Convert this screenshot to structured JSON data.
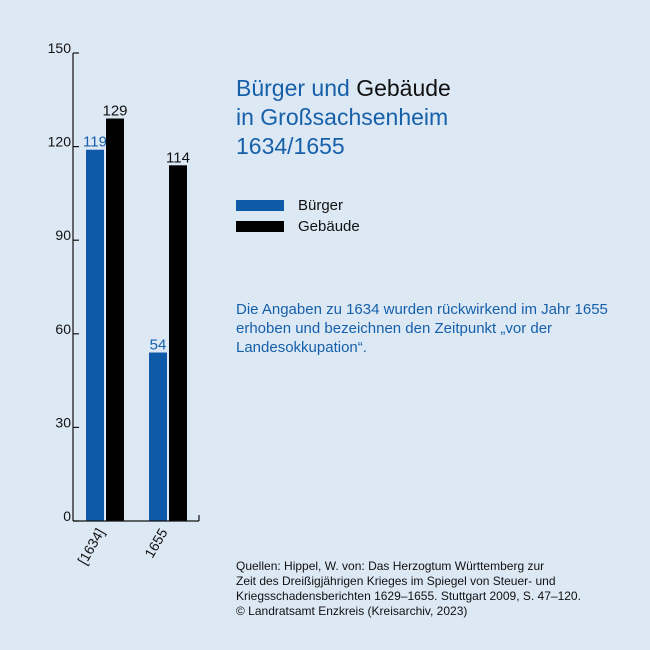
{
  "title": {
    "part1": "Bürger und ",
    "part2": "Gebäude",
    "line2": "in Großsachsenheim",
    "line3": "1634/1655"
  },
  "legend": [
    {
      "label": "Bürger",
      "color": "#0f5aa8"
    },
    {
      "label": "Gebäude",
      "color": "#000000"
    }
  ],
  "note": "Die Angaben zu 1634 wurden rückwirkend im Jahr 1655 erhoben und bezeichnen den Zeitpunkt „vor der Landesokkupation“.",
  "source": {
    "line1": "Quellen: Hippel, W. von: Das Herzogtum Württemberg zur",
    "line2": "Zeit des Dreißigjährigen Krieges im Spiegel von Steuer- und",
    "line3": "Kriegsschadensberichten 1629–1655. Stuttgart 2009, S. 47–120.",
    "line4": "© Landratsamt Enzkreis (Kreisarchiv, 2023)"
  },
  "chart_data": {
    "type": "bar",
    "categories": [
      "[1634]",
      "1655"
    ],
    "series": [
      {
        "name": "Bürger",
        "values": [
          119,
          54
        ],
        "color": "#0f5aa8",
        "label_color": "#1660aa"
      },
      {
        "name": "Gebäude",
        "values": [
          129,
          114
        ],
        "color": "#000000",
        "label_color": "#111111"
      }
    ],
    "yticks": [
      0,
      30,
      60,
      90,
      120,
      150
    ],
    "ylim": [
      0,
      150
    ],
    "legend_position": "right"
  }
}
